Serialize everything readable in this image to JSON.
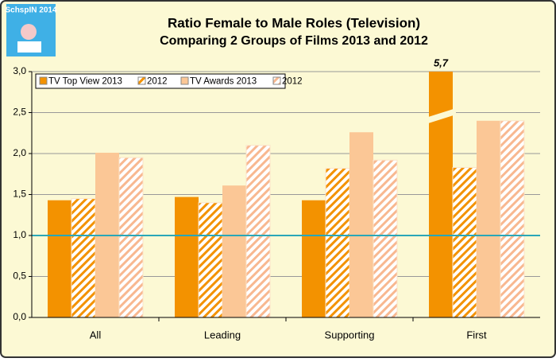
{
  "logo": "SchspIN 2014",
  "chart_data": {
    "type": "bar",
    "title": "Ratio Female to Male Roles (Television)",
    "subtitle": "Comparing 2 Groups of Films 2013 and 2012",
    "categories": [
      "All",
      "Leading",
      "Supporting",
      "First"
    ],
    "series": [
      {
        "name": "TV Top View 2013",
        "color": "#f39200",
        "hatch": false,
        "values": [
          1.43,
          1.47,
          1.43,
          5.7
        ],
        "value_labels": [
          null,
          null,
          null,
          "5,7"
        ]
      },
      {
        "name": "2012",
        "color": "#f39200",
        "hatch": true,
        "values": [
          1.45,
          1.4,
          1.82,
          1.83
        ]
      },
      {
        "name": "TV Awards 2013",
        "color": "#fbc796",
        "hatch": false,
        "values": [
          2.01,
          1.61,
          2.26,
          2.4
        ]
      },
      {
        "name": "2012",
        "color": "#f8b890",
        "hatch": true,
        "values": [
          1.95,
          2.1,
          1.92,
          2.4
        ]
      }
    ],
    "ylim": [
      0,
      3
    ],
    "yticks": [
      {
        "value": 0,
        "label": "0,0"
      },
      {
        "value": 0.5,
        "label": "0,5"
      },
      {
        "value": 1,
        "label": "1,0"
      },
      {
        "value": 1.5,
        "label": "1,5"
      },
      {
        "value": 2,
        "label": "2,0"
      },
      {
        "value": 2.5,
        "label": "2,5"
      },
      {
        "value": 3,
        "label": "3,0"
      }
    ],
    "grid": true,
    "reference_line": {
      "value": 1,
      "color": "#2aa7b8"
    },
    "legend": "top-left"
  }
}
